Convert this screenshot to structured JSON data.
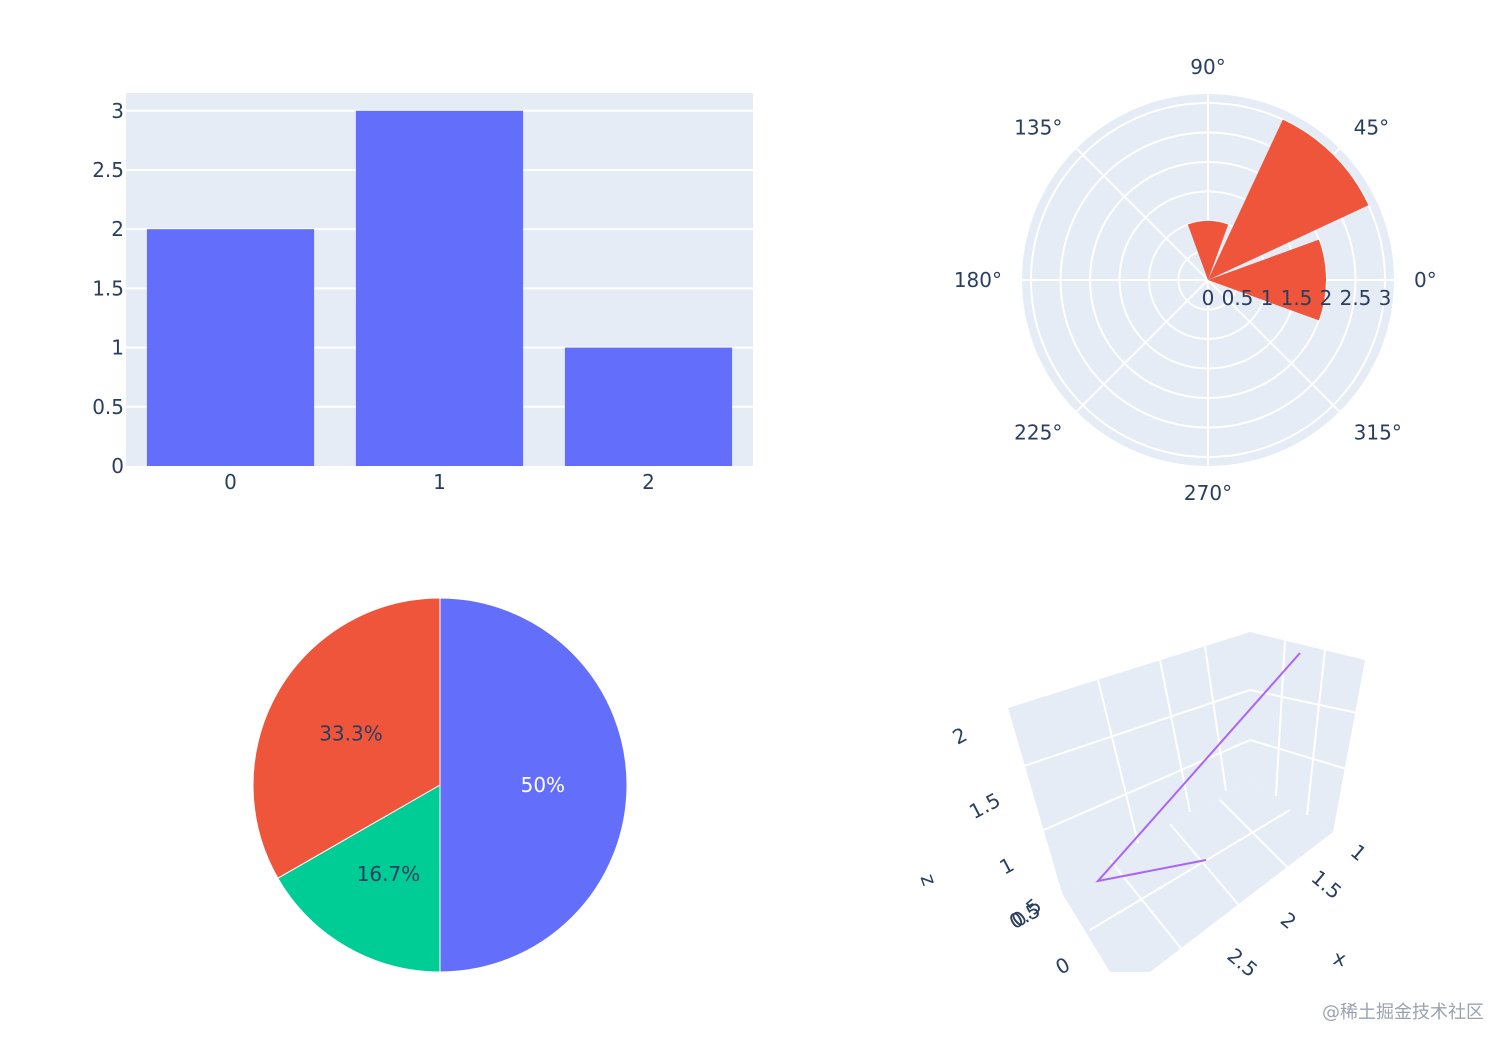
{
  "chart_data": [
    {
      "type": "bar",
      "categories": [
        "0",
        "1",
        "2"
      ],
      "values": [
        2,
        3,
        1
      ],
      "ylim": [
        0,
        3.15
      ],
      "yticks": [
        "0",
        "0.5",
        "1",
        "1.5",
        "2",
        "2.5",
        "3"
      ],
      "color": "#636efa",
      "grid": true
    },
    {
      "type": "barpolar",
      "theta_labels": [
        "0°",
        "45°",
        "90°",
        "135°",
        "180°",
        "225°",
        "270°",
        "315°"
      ],
      "radial_ticks": [
        "0",
        "0.5",
        "1",
        "1.5",
        "2",
        "2.5",
        "3"
      ],
      "r_max": 3,
      "bars": [
        {
          "theta_start": -20,
          "theta_end": 20,
          "r": 2
        },
        {
          "theta_start": 25,
          "theta_end": 65,
          "r": 3
        },
        {
          "theta_start": 70,
          "theta_end": 110,
          "r": 1
        }
      ],
      "color": "#ef553b"
    },
    {
      "type": "pie",
      "slices": [
        {
          "value": 50,
          "label": "50%",
          "color": "#636efa"
        },
        {
          "value": 16.7,
          "label": "16.7%",
          "color": "#00cc96"
        },
        {
          "value": 33.3,
          "label": "33.3%",
          "color": "#ef553b"
        }
      ]
    },
    {
      "type": "scatter3d",
      "mode": "lines",
      "line_color": "#ab63fa",
      "axes": {
        "x": {
          "title": "x",
          "ticks": [
            "1",
            "1.5",
            "2",
            "2.5"
          ]
        },
        "z": {
          "title": "z",
          "ticks": [
            "0",
            "0.5",
            "1",
            "1.5",
            "2"
          ],
          "extra_overlap_label": "0.5"
        }
      }
    }
  ],
  "watermark": "@稀土掘金技术社区"
}
